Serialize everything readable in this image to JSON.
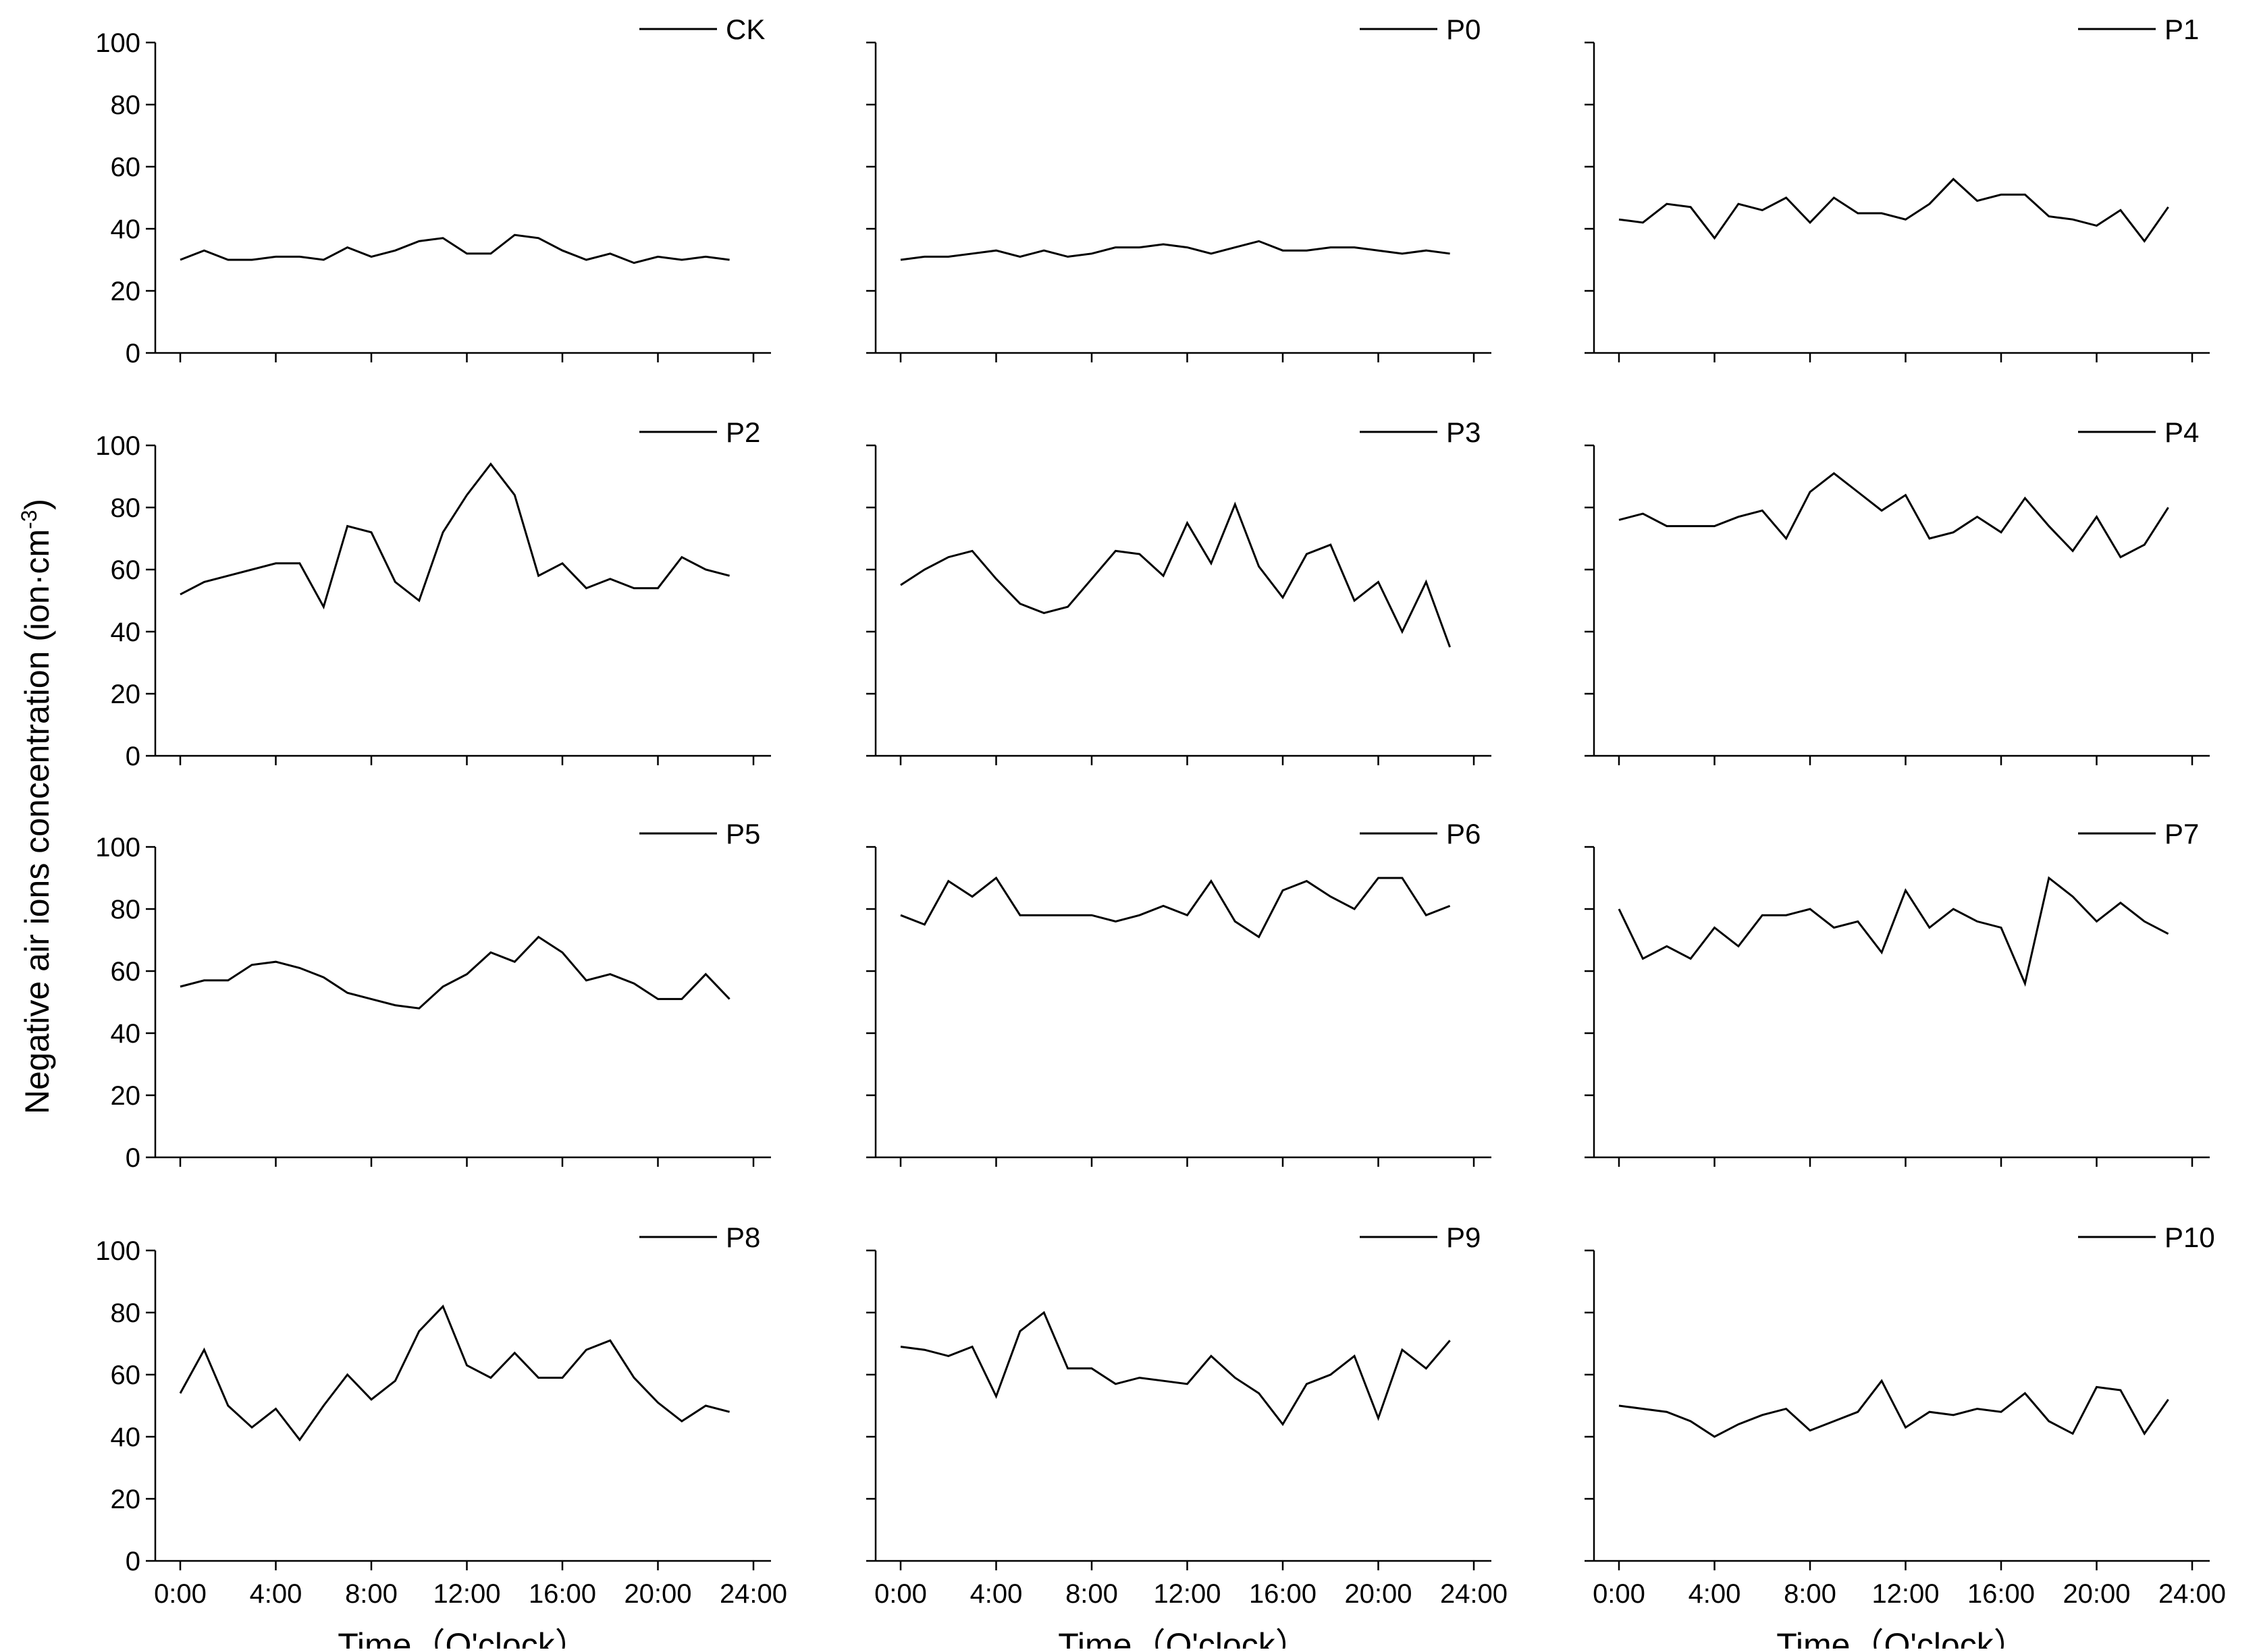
{
  "chart_data": {
    "type": "line",
    "layout": "4x3 small multiples",
    "ylabel": "Negative air ions concentration (ion·cm",
    "ylabel_superscript": "-3",
    "ylabel_close": ")",
    "xlabel": "Time（O'clock）",
    "ylim": [
      0,
      100
    ],
    "xlim_hours": [
      0,
      24
    ],
    "y_ticks": [
      "0",
      "20",
      "40",
      "60",
      "80",
      "100"
    ],
    "x_ticks": [
      "0:00",
      "4:00",
      "8:00",
      "12:00",
      "16:00",
      "20:00",
      "24:00"
    ],
    "x": [
      "0:00",
      "1:00",
      "2:00",
      "3:00",
      "4:00",
      "5:00",
      "6:00",
      "7:00",
      "8:00",
      "9:00",
      "10:00",
      "11:00",
      "12:00",
      "13:00",
      "14:00",
      "15:00",
      "16:00",
      "17:00",
      "18:00",
      "19:00",
      "20:00",
      "21:00",
      "22:00",
      "23:00"
    ],
    "legend_position": "top-right",
    "line_color": "#000000",
    "series": [
      {
        "name": "CK",
        "values": [
          30,
          33,
          30,
          30,
          31,
          31,
          30,
          34,
          31,
          33,
          36,
          37,
          32,
          32,
          38,
          37,
          33,
          30,
          32,
          29,
          31,
          30,
          31,
          30
        ]
      },
      {
        "name": "P0",
        "values": [
          30,
          31,
          31,
          32,
          33,
          31,
          33,
          31,
          32,
          34,
          34,
          35,
          34,
          32,
          34,
          36,
          33,
          33,
          34,
          34,
          33,
          32,
          33,
          32
        ]
      },
      {
        "name": "P1",
        "values": [
          43,
          42,
          48,
          47,
          37,
          48,
          46,
          50,
          42,
          50,
          45,
          45,
          43,
          48,
          56,
          49,
          51,
          51,
          44,
          43,
          41,
          46,
          36,
          47
        ]
      },
      {
        "name": "P2",
        "values": [
          52,
          56,
          58,
          60,
          62,
          62,
          48,
          74,
          72,
          56,
          50,
          72,
          84,
          94,
          84,
          58,
          62,
          54,
          57,
          54,
          54,
          64,
          60,
          58
        ]
      },
      {
        "name": "P3",
        "values": [
          55,
          60,
          64,
          66,
          57,
          49,
          46,
          48,
          57,
          66,
          65,
          58,
          75,
          62,
          81,
          61,
          51,
          65,
          68,
          50,
          56,
          40,
          56,
          35
        ]
      },
      {
        "name": "P4",
        "values": [
          76,
          78,
          74,
          74,
          74,
          77,
          79,
          70,
          85,
          91,
          85,
          79,
          84,
          70,
          72,
          77,
          72,
          83,
          74,
          66,
          77,
          64,
          68,
          80
        ]
      },
      {
        "name": "P5",
        "values": [
          55,
          57,
          57,
          62,
          63,
          61,
          58,
          53,
          51,
          49,
          48,
          55,
          59,
          66,
          63,
          71,
          66,
          57,
          59,
          56,
          51,
          51,
          59,
          51
        ]
      },
      {
        "name": "P6",
        "values": [
          78,
          75,
          89,
          84,
          90,
          78,
          78,
          78,
          78,
          76,
          78,
          81,
          78,
          89,
          76,
          71,
          86,
          89,
          84,
          80,
          90,
          90,
          78,
          81
        ]
      },
      {
        "name": "P7",
        "values": [
          80,
          64,
          68,
          64,
          74,
          68,
          78,
          78,
          80,
          74,
          76,
          66,
          86,
          74,
          80,
          76,
          74,
          56,
          90,
          84,
          76,
          82,
          76,
          72
        ]
      },
      {
        "name": "P8",
        "values": [
          54,
          68,
          50,
          43,
          49,
          39,
          50,
          60,
          52,
          58,
          74,
          82,
          63,
          59,
          67,
          59,
          59,
          68,
          71,
          59,
          51,
          45,
          50,
          48
        ]
      },
      {
        "name": "P9",
        "values": [
          69,
          68,
          66,
          69,
          53,
          74,
          80,
          62,
          62,
          57,
          59,
          58,
          57,
          66,
          59,
          54,
          44,
          57,
          60,
          66,
          46,
          68,
          62,
          71
        ]
      },
      {
        "name": "P10",
        "values": [
          50,
          49,
          48,
          45,
          40,
          44,
          47,
          49,
          42,
          45,
          48,
          58,
          43,
          48,
          47,
          49,
          48,
          54,
          45,
          41,
          56,
          55,
          41,
          52
        ]
      }
    ]
  }
}
